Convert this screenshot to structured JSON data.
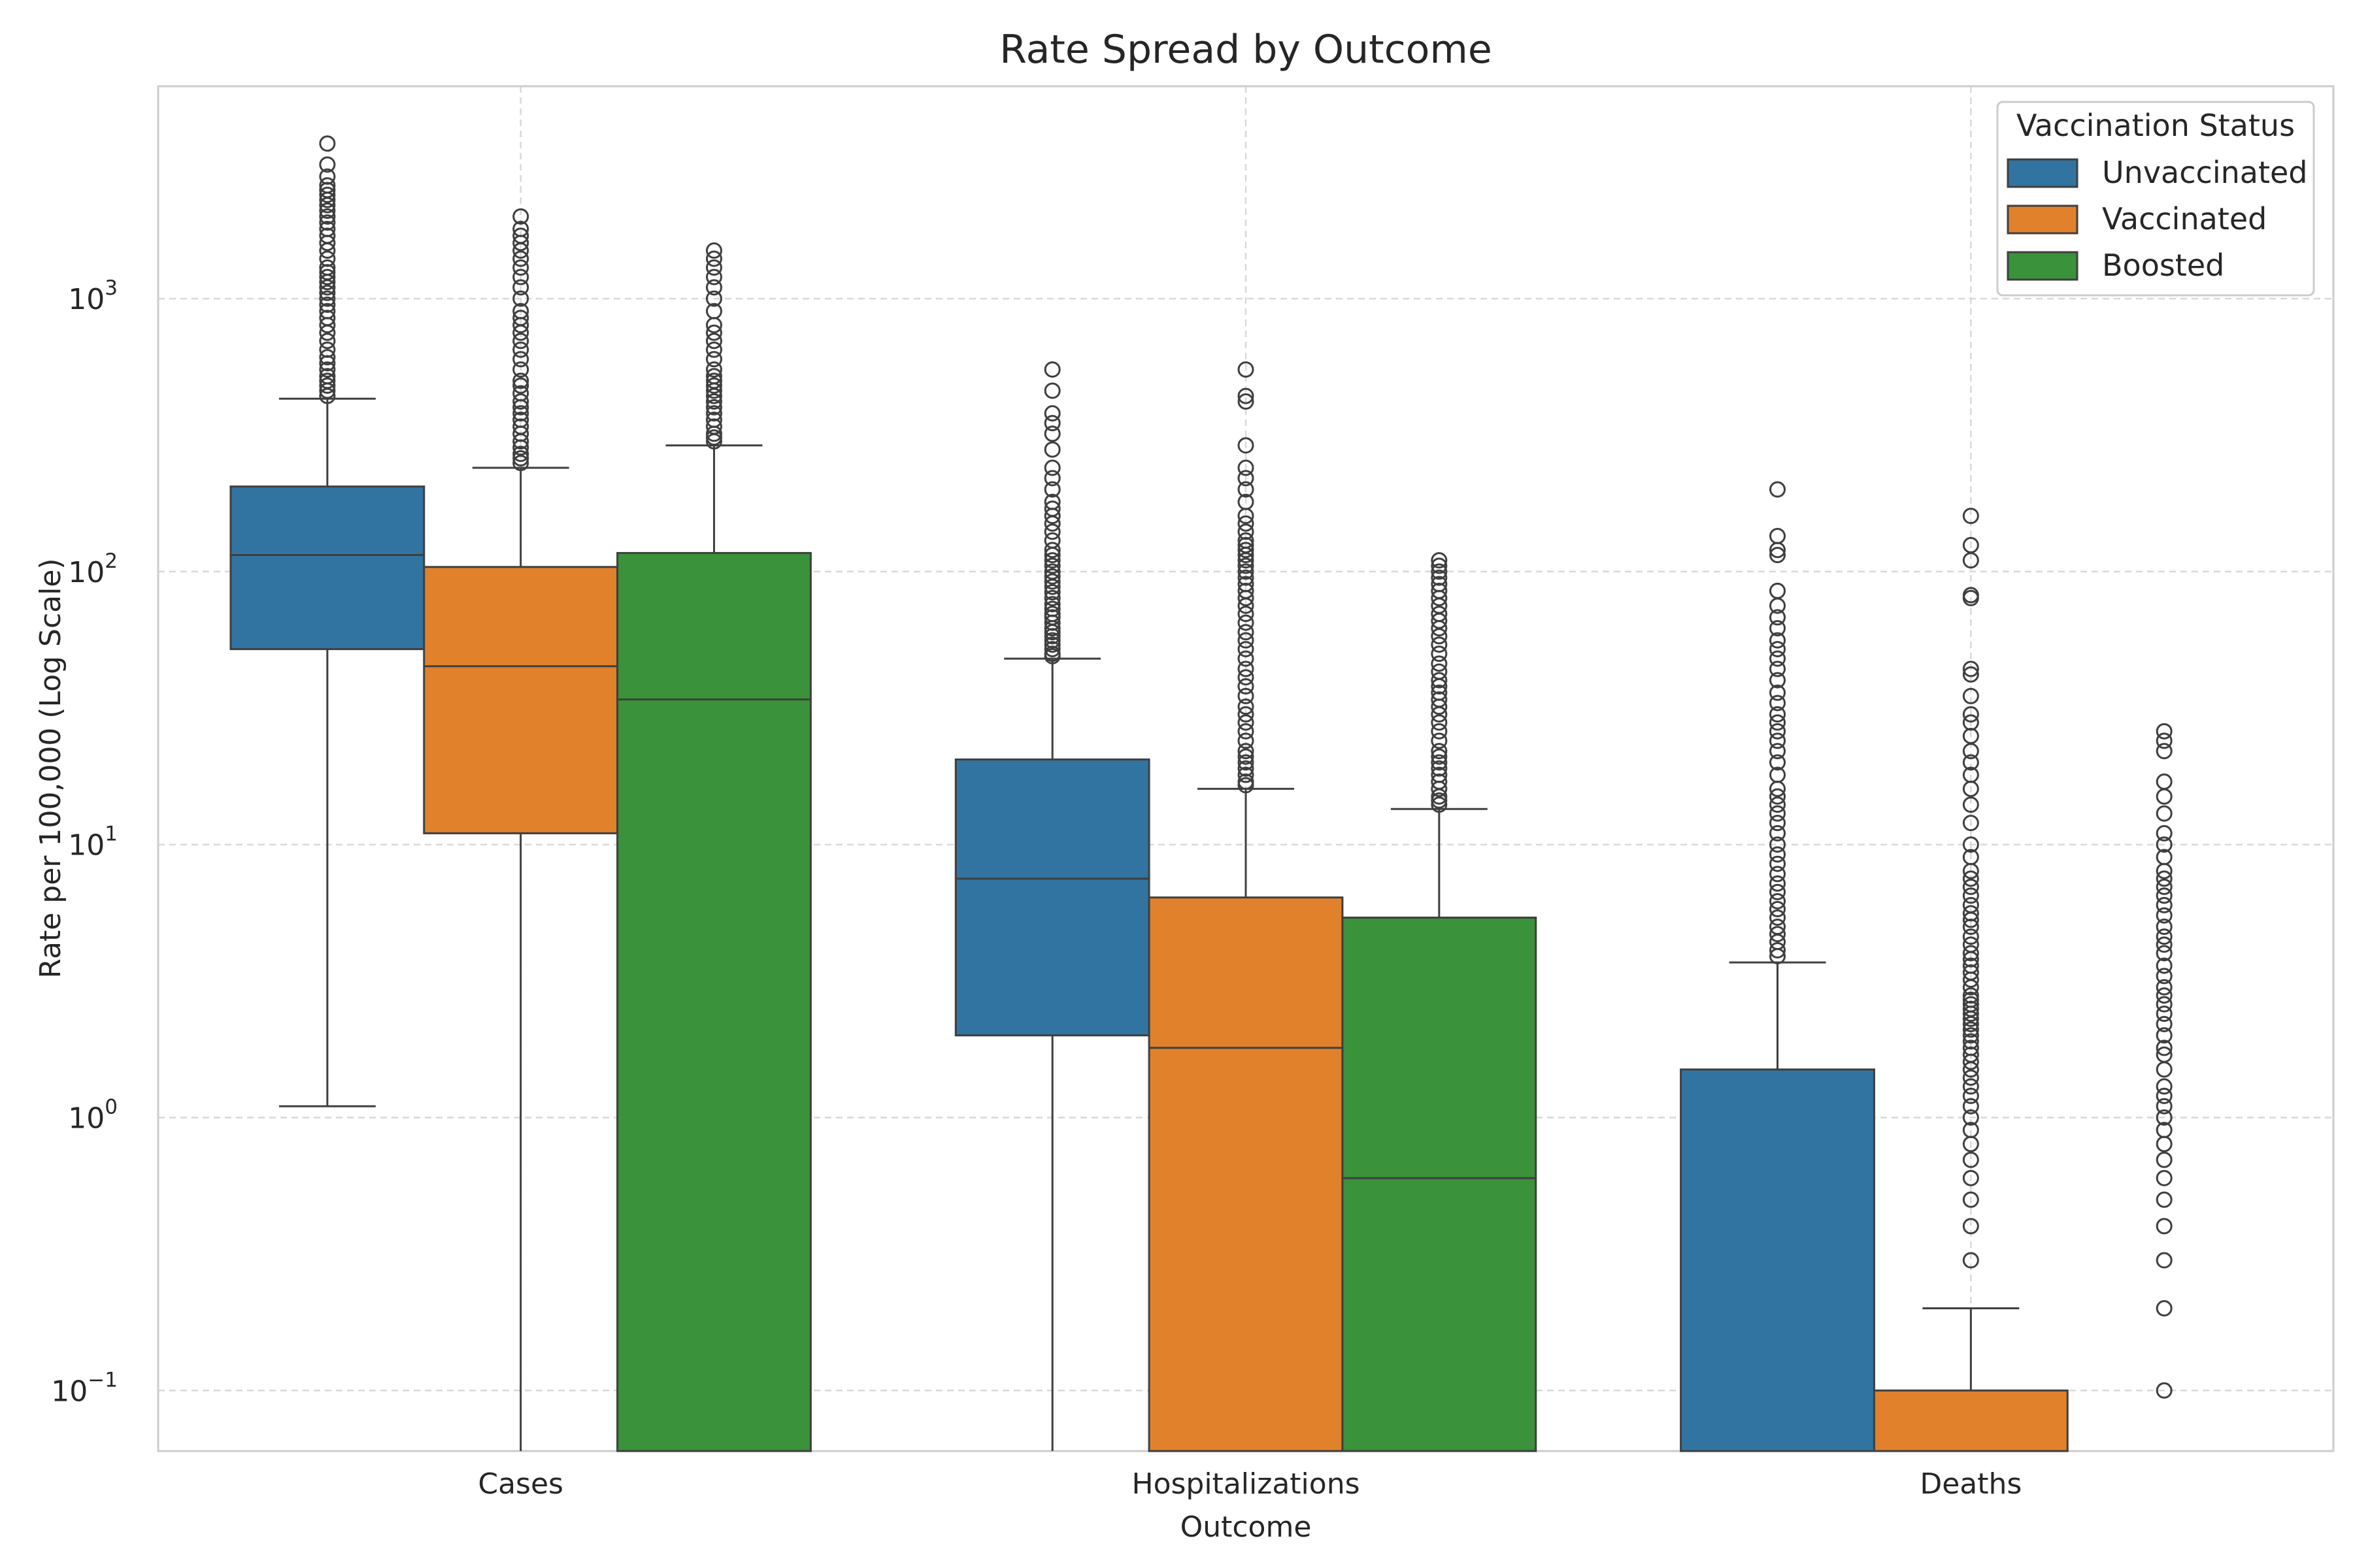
{
  "chart_data": {
    "type": "box",
    "title": "Rate Spread by Outcome",
    "xlabel": "Outcome",
    "ylabel": "Rate per 100,000 (Log Scale)",
    "yscale": "log",
    "ylim": [
      0.06,
      6000
    ],
    "grid": true,
    "categories": [
      "Cases",
      "Hospitalizations",
      "Deaths"
    ],
    "y_ticks": [
      {
        "value": 0.1,
        "base": "10",
        "exp": "−1"
      },
      {
        "value": 1,
        "base": "10",
        "exp": "0"
      },
      {
        "value": 10,
        "base": "10",
        "exp": "1"
      },
      {
        "value": 100,
        "base": "10",
        "exp": "2"
      },
      {
        "value": 1000,
        "base": "10",
        "exp": "3"
      }
    ],
    "legend": {
      "title": "Vaccination Status",
      "position": "upper right",
      "entries": [
        "Unvaccinated",
        "Vaccinated",
        "Boosted"
      ]
    },
    "colors": {
      "Unvaccinated": "#3274a1",
      "Vaccinated": "#e1812c",
      "Boosted": "#3a923a"
    },
    "series": [
      {
        "name": "Unvaccinated",
        "boxes": [
          {
            "category": "Cases",
            "whisker_low": 1.1,
            "q1": 52,
            "median": 115,
            "q3": 205,
            "whisker_high": 430,
            "outliers": [
              440,
              460,
              480,
              500,
              520,
              550,
              580,
              610,
              650,
              700,
              750,
              800,
              850,
              900,
              950,
              1000,
              1050,
              1100,
              1150,
              1200,
              1250,
              1300,
              1400,
              1500,
              1600,
              1700,
              1800,
              1900,
              2000,
              2100,
              2200,
              2300,
              2400,
              2500,
              2600,
              2800,
              3100,
              3700
            ]
          },
          {
            "category": "Hospitalizations",
            "whisker_low": 0.06,
            "q1": 2.0,
            "median": 7.5,
            "q3": 20.5,
            "whisker_high": 48,
            "outliers": [
              49,
              50,
              52,
              54,
              56,
              58,
              60,
              62,
              65,
              68,
              70,
              73,
              76,
              80,
              84,
              88,
              92,
              96,
              100,
              105,
              110,
              115,
              120,
              130,
              140,
              150,
              160,
              170,
              180,
              200,
              220,
              240,
              280,
              320,
              350,
              380,
              460,
              550
            ]
          },
          {
            "category": "Deaths",
            "whisker_low": 0.06,
            "q1": 0.06,
            "median": 0.06,
            "q3": 1.5,
            "whisker_high": 3.7,
            "outliers": [
              3.9,
              4.1,
              4.4,
              4.7,
              5,
              5.4,
              5.8,
              6.2,
              6.7,
              7.2,
              7.8,
              8.5,
              9.2,
              10,
              11,
              12,
              13,
              14,
              15,
              16,
              18,
              20,
              22,
              24,
              26,
              28,
              30,
              33,
              36,
              40,
              44,
              48,
              52,
              56,
              62,
              68,
              75,
              85,
              115,
              120,
              135,
              200
            ]
          }
        ]
      },
      {
        "name": "Vaccinated",
        "boxes": [
          {
            "category": "Cases",
            "whisker_low": 0.06,
            "q1": 11,
            "median": 45,
            "q3": 104,
            "whisker_high": 240,
            "outliers": [
              250,
              260,
              270,
              285,
              300,
              320,
              340,
              360,
              380,
              400,
              420,
              450,
              480,
              500,
              550,
              600,
              650,
              700,
              750,
              800,
              850,
              900,
              1000,
              1100,
              1200,
              1300,
              1400,
              1500,
              1600,
              1700,
              1800,
              2000
            ]
          },
          {
            "category": "Hospitalizations",
            "whisker_low": 0.06,
            "q1": 0.06,
            "median": 1.8,
            "q3": 6.4,
            "whisker_high": 16,
            "outliers": [
              16.5,
              17,
              18,
              19,
              20,
              21,
              22,
              24,
              26,
              28,
              30,
              32,
              35,
              38,
              41,
              44,
              48,
              52,
              56,
              60,
              65,
              70,
              75,
              80,
              85,
              90,
              95,
              100,
              105,
              110,
              115,
              120,
              125,
              130,
              140,
              150,
              160,
              180,
              200,
              220,
              240,
              290,
              420,
              440,
              550
            ]
          },
          {
            "category": "Deaths",
            "whisker_low": 0.06,
            "q1": 0.06,
            "median": 0.06,
            "q3": 0.1,
            "whisker_high": 0.2,
            "outliers": [
              0.3,
              0.4,
              0.5,
              0.6,
              0.7,
              0.8,
              0.9,
              1.0,
              1.1,
              1.2,
              1.3,
              1.4,
              1.5,
              1.6,
              1.7,
              1.8,
              1.9,
              2.0,
              2.1,
              2.2,
              2.3,
              2.4,
              2.5,
              2.6,
              2.7,
              2.8,
              3.0,
              3.2,
              3.4,
              3.6,
              3.8,
              4.0,
              4.3,
              4.6,
              5.0,
              5.3,
              5.6,
              6.0,
              6.5,
              7.0,
              7.5,
              8.0,
              9.0,
              10,
              12,
              14,
              16,
              18,
              20,
              22,
              25,
              28,
              30,
              35,
              42,
              44,
              80,
              82,
              110,
              125,
              160
            ]
          }
        ]
      },
      {
        "name": "Boosted",
        "boxes": [
          {
            "category": "Cases",
            "whisker_low": 0.06,
            "q1": 0.06,
            "median": 34,
            "q3": 117,
            "whisker_high": 290,
            "outliers": [
              300,
              310,
              320,
              340,
              360,
              380,
              400,
              420,
              440,
              460,
              480,
              500,
              520,
              550,
              600,
              650,
              700,
              750,
              800,
              900,
              1000,
              1100,
              1200,
              1300,
              1400,
              1500
            ]
          },
          {
            "category": "Hospitalizations",
            "whisker_low": 0.06,
            "q1": 0.06,
            "median": 0.6,
            "q3": 5.4,
            "whisker_high": 13.5,
            "outliers": [
              14,
              14.5,
              15,
              16,
              17,
              18,
              19,
              20,
              21,
              22,
              24,
              26,
              28,
              30,
              32,
              34,
              36,
              38,
              40,
              43,
              46,
              50,
              54,
              58,
              62,
              66,
              70,
              75,
              80,
              85,
              90,
              95,
              100,
              105,
              110
            ]
          },
          {
            "category": "Deaths",
            "whisker_low": null,
            "q1": null,
            "median": null,
            "q3": null,
            "whisker_high": null,
            "outliers": [
              0.1,
              0.2,
              0.3,
              0.4,
              0.5,
              0.6,
              0.7,
              0.8,
              0.9,
              1.0,
              1.1,
              1.2,
              1.3,
              1.5,
              1.7,
              1.8,
              2.0,
              2.2,
              2.4,
              2.6,
              2.8,
              3.0,
              3.3,
              3.6,
              4.0,
              4.3,
              4.6,
              5.0,
              5.5,
              6.0,
              6.5,
              7.0,
              7.5,
              8.0,
              9.0,
              10,
              11,
              13,
              15,
              17,
              22,
              24,
              26
            ]
          }
        ]
      }
    ]
  }
}
